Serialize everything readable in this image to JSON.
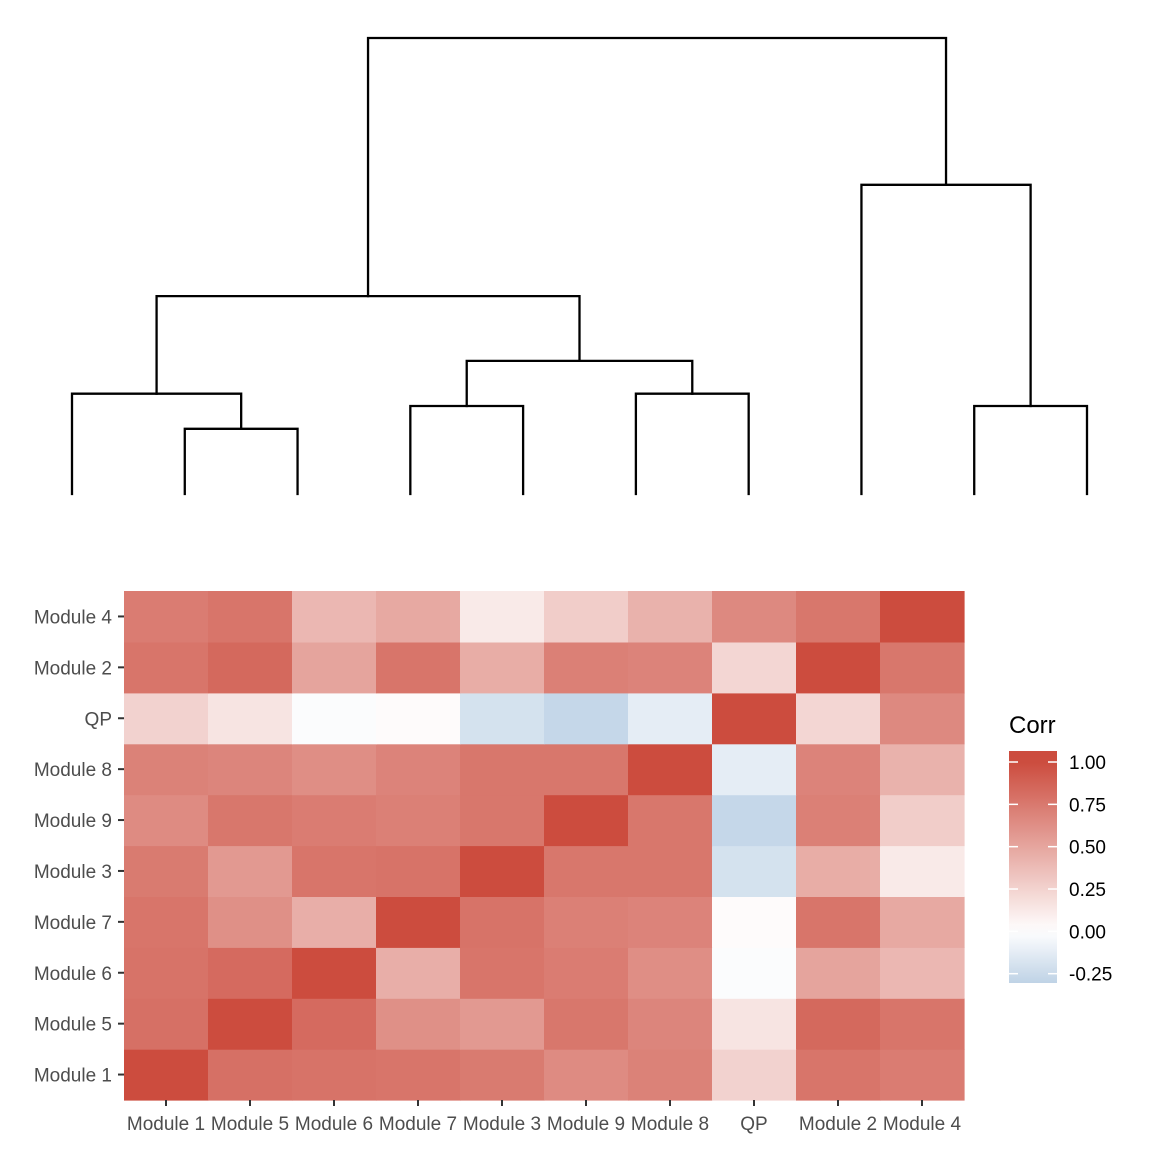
{
  "chart_data": {
    "type": "heatmap",
    "title": "",
    "xlabel": "",
    "ylabel": "",
    "x_categories": [
      "Module 1",
      "Module 5",
      "Module 6",
      "Module 7",
      "Module 3",
      "Module 9",
      "Module 8",
      "QP",
      "Module 2",
      "Module 4"
    ],
    "y_categories": [
      "Module 1",
      "Module 5",
      "Module 6",
      "Module 7",
      "Module 3",
      "Module 9",
      "Module 8",
      "QP",
      "Module 2",
      "Module 4"
    ],
    "values": [
      [
        1.0,
        0.8,
        0.78,
        0.77,
        0.74,
        0.65,
        0.7,
        0.25,
        0.77,
        0.73
      ],
      [
        0.8,
        1.0,
        0.83,
        0.62,
        0.57,
        0.76,
        0.68,
        0.15,
        0.84,
        0.77
      ],
      [
        0.78,
        0.83,
        1.0,
        0.45,
        0.77,
        0.73,
        0.63,
        -0.02,
        0.51,
        0.4
      ],
      [
        0.77,
        0.62,
        0.45,
        1.0,
        0.78,
        0.71,
        0.69,
        0.02,
        0.77,
        0.48
      ],
      [
        0.74,
        0.57,
        0.77,
        0.78,
        1.0,
        0.76,
        0.76,
        -0.2,
        0.46,
        0.12
      ],
      [
        0.65,
        0.76,
        0.73,
        0.71,
        0.76,
        1.0,
        0.76,
        -0.27,
        0.71,
        0.28
      ],
      [
        0.7,
        0.68,
        0.63,
        0.69,
        0.76,
        0.76,
        1.0,
        -0.12,
        0.69,
        0.43
      ],
      [
        0.25,
        0.15,
        -0.02,
        0.02,
        -0.2,
        -0.27,
        -0.12,
        1.0,
        0.23,
        0.66
      ],
      [
        0.77,
        0.84,
        0.51,
        0.77,
        0.46,
        0.71,
        0.69,
        0.23,
        1.0,
        0.76
      ],
      [
        0.73,
        0.77,
        0.4,
        0.48,
        0.12,
        0.28,
        0.43,
        0.66,
        0.76,
        1.0
      ]
    ],
    "color_scale": {
      "low_color": "#bfd3e6",
      "mid_color": "#ffffff",
      "high_color": "#cc4c3e",
      "low_value": -0.3,
      "mid_value": 0,
      "high_value": 1.0
    },
    "legend": {
      "title": "Corr",
      "placement": "right",
      "breaks": [
        "1.00",
        "0.75",
        "0.50",
        "0.25",
        "0.00",
        "-0.25"
      ],
      "break_values": [
        1.0,
        0.75,
        0.5,
        0.25,
        0.0,
        -0.25
      ]
    },
    "dendrogram": {
      "leaves": [
        "Module 1",
        "Module 5",
        "Module 6",
        "Module 7",
        "Module 3",
        "Module 9",
        "Module 8",
        "QP",
        "Module 2",
        "Module 4"
      ],
      "merges": [
        {
          "left": "Module 5",
          "right": "Module 6",
          "height": 0.143
        },
        {
          "left": "Module 1",
          "right": [
            "Module 5",
            "Module 6"
          ],
          "height": 0.22
        },
        {
          "left": "Module 7",
          "right": "Module 3",
          "height": 0.193
        },
        {
          "left": "Module 9",
          "right": "Module 8",
          "height": 0.22
        },
        {
          "left": [
            "Module 7",
            "Module 3"
          ],
          "right": [
            "Module 9",
            "Module 8"
          ],
          "height": 0.292
        },
        {
          "left": [
            "Module 1",
            "Module 5",
            "Module 6"
          ],
          "right": [
            "Module 7",
            "Module 3",
            "Module 9",
            "Module 8"
          ],
          "height": 0.434
        },
        {
          "left": "Module 2",
          "right": "Module 4",
          "height": 0.193
        },
        {
          "left": "QP",
          "right": [
            "Module 2",
            "Module 4"
          ],
          "height": 0.678
        },
        {
          "left": [
            "Module 1",
            "Module 5",
            "Module 6",
            "Module 7",
            "Module 3",
            "Module 9",
            "Module 8"
          ],
          "right": [
            "QP",
            "Module 2",
            "Module 4"
          ],
          "height": 1.0
        }
      ]
    }
  }
}
